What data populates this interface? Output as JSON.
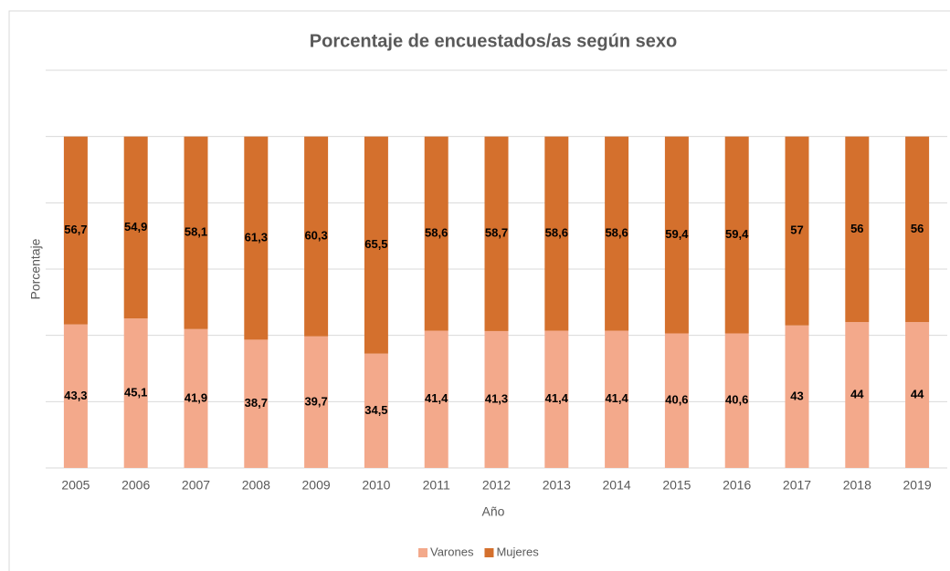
{
  "chart_data": {
    "type": "stacked_bar",
    "title": "Porcentaje de encuestados/as según sexo",
    "x_label": "Año",
    "y_label": "Porcentaje",
    "categories": [
      "2005",
      "2006",
      "2007",
      "2008",
      "2009",
      "2010",
      "2011",
      "2012",
      "2013",
      "2014",
      "2015",
      "2016",
      "2017",
      "2018",
      "2019"
    ],
    "series": [
      {
        "name": "Varones",
        "color": "#f3a98b",
        "values": [
          43.3,
          45.1,
          41.9,
          38.7,
          39.7,
          34.5,
          41.4,
          41.3,
          41.4,
          41.4,
          40.6,
          40.6,
          43,
          44,
          44
        ],
        "value_labels": [
          "43,3",
          "45,1",
          "41,9",
          "38,7",
          "39,7",
          "34,5",
          "41,4",
          "41,3",
          "41,4",
          "41,4",
          "40,6",
          "40,6",
          "43",
          "44",
          "44"
        ]
      },
      {
        "name": "Mujeres",
        "color": "#d4702d",
        "values": [
          56.7,
          54.9,
          58.1,
          61.3,
          60.3,
          65.5,
          58.6,
          58.7,
          58.6,
          58.6,
          59.4,
          59.4,
          57,
          56,
          56
        ],
        "value_labels": [
          "56,7",
          "54,9",
          "58,1",
          "61,3",
          "60,3",
          "65,5",
          "58,6",
          "58,7",
          "58,6",
          "58,6",
          "59,4",
          "59,4",
          "57",
          "56",
          "56"
        ]
      }
    ],
    "ylim": [
      0,
      120
    ],
    "yticks": [
      0,
      20,
      40,
      60,
      80,
      100,
      120
    ],
    "grid": true,
    "legend": "bottom"
  }
}
